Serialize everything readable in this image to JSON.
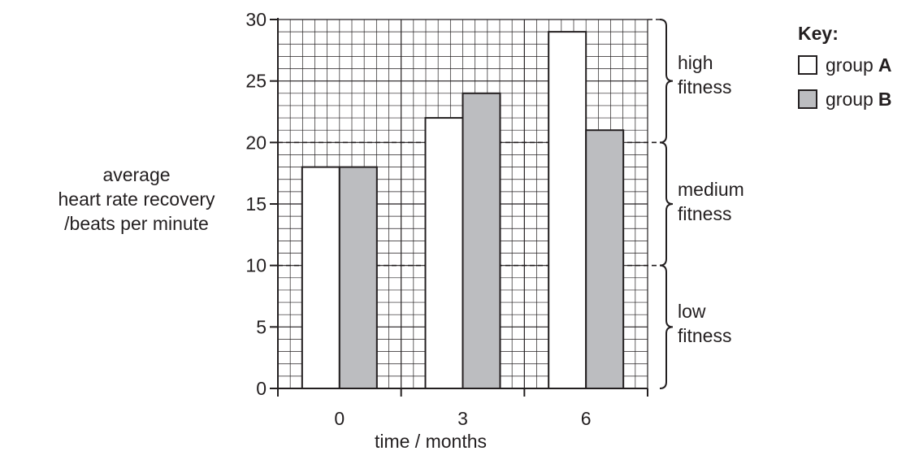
{
  "chart_data": {
    "type": "bar",
    "categories": [
      "0",
      "3",
      "6"
    ],
    "series": [
      {
        "name": "group A",
        "values": [
          18,
          22,
          29
        ],
        "color": "#ffffff"
      },
      {
        "name": "group B",
        "values": [
          18,
          24,
          21
        ],
        "color": "#bcbdc0"
      }
    ],
    "ylim": [
      0,
      30
    ],
    "yticks": [
      "0",
      "5",
      "10",
      "15",
      "20",
      "25",
      "30"
    ],
    "ylabel_lines": [
      "average",
      "heart rate recovery",
      "/beats per minute"
    ],
    "xlabel": "time / months",
    "grid": true,
    "thresholds": [
      10,
      20
    ],
    "zones": [
      {
        "lines": [
          "high",
          "fitness"
        ],
        "range": [
          20,
          30
        ]
      },
      {
        "lines": [
          "medium",
          "fitness"
        ],
        "range": [
          10,
          20
        ]
      },
      {
        "lines": [
          "low",
          "fitness"
        ],
        "range": [
          0,
          10
        ]
      }
    ],
    "legend": {
      "title": "Key:",
      "placement": "top-right",
      "items": [
        {
          "prefix": "group",
          "letter": "A"
        },
        {
          "prefix": "group",
          "letter": "B"
        }
      ]
    }
  }
}
